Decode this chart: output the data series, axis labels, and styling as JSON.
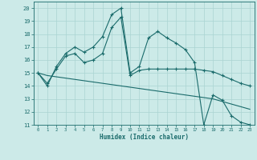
{
  "bg_color": "#cceae8",
  "line_color": "#1a6b6b",
  "grid_color": "#aad4d2",
  "xlabel": "Humidex (Indice chaleur)",
  "xlim": [
    -0.5,
    23.5
  ],
  "ylim": [
    11,
    20.5
  ],
  "xticks": [
    0,
    1,
    2,
    3,
    4,
    5,
    6,
    7,
    8,
    9,
    10,
    11,
    12,
    13,
    14,
    15,
    16,
    17,
    18,
    19,
    20,
    21,
    22,
    23
  ],
  "yticks": [
    11,
    12,
    13,
    14,
    15,
    16,
    17,
    18,
    19,
    20
  ],
  "series1_x": [
    0,
    1,
    2,
    3,
    4,
    5,
    6,
    7,
    8,
    9,
    10,
    11,
    12,
    13,
    14,
    15,
    16,
    17,
    18,
    19,
    20,
    21,
    22,
    23
  ],
  "series1_y": [
    15,
    14,
    15.5,
    16.5,
    17,
    16.6,
    17.0,
    17.8,
    19.5,
    20.0,
    15.0,
    15.5,
    17.7,
    18.2,
    17.7,
    17.3,
    16.8,
    15.8,
    11.0,
    13.3,
    12.9,
    11.7,
    11.2,
    11.0
  ],
  "series2_x": [
    0,
    1,
    2,
    3,
    4,
    5,
    6,
    7,
    8,
    9,
    10,
    11,
    12,
    13,
    14,
    15,
    16,
    17,
    18,
    19,
    20,
    21,
    22,
    23
  ],
  "series2_y": [
    15,
    14.2,
    15.3,
    16.3,
    16.5,
    15.8,
    16.0,
    16.5,
    18.5,
    19.3,
    14.8,
    15.2,
    15.3,
    15.3,
    15.3,
    15.3,
    15.3,
    15.3,
    15.2,
    15.1,
    14.8,
    14.5,
    14.2,
    14.0
  ],
  "series3_x": [
    0,
    1,
    2,
    3,
    4,
    5,
    6,
    7,
    8,
    9,
    10,
    11,
    12,
    13,
    14,
    15,
    16,
    17,
    18,
    19,
    20,
    21,
    22,
    23
  ],
  "series3_y": [
    15.0,
    14.8,
    14.7,
    14.6,
    14.5,
    14.4,
    14.3,
    14.2,
    14.1,
    14.0,
    13.9,
    13.8,
    13.7,
    13.6,
    13.5,
    13.4,
    13.3,
    13.2,
    13.1,
    13.0,
    12.8,
    12.6,
    12.4,
    12.2
  ]
}
